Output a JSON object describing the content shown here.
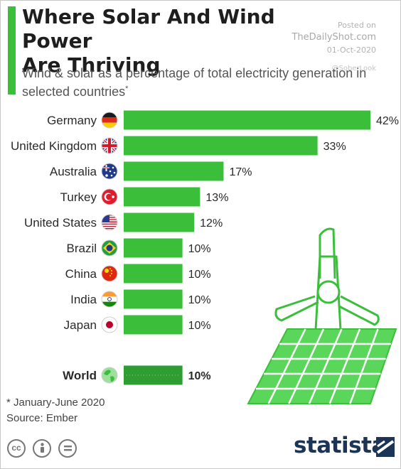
{
  "header": {
    "title_line1": "Where Solar And Wind Power",
    "title_line2": "Are Thriving",
    "subtitle": "Wind & solar as a percentage of total electricity generation in selected countries",
    "subtitle_mark": "*"
  },
  "watermark": {
    "posted": "Posted on",
    "site": "TheDailyShot.com",
    "date": "01-Oct-2020",
    "handle": "@SoberLook"
  },
  "colors": {
    "bar": "#3bbf3b",
    "world_bar": "#2e9e33",
    "accent": "#3bbf3b",
    "brand": "#1c3556"
  },
  "chart_data": {
    "type": "bar",
    "orientation": "horizontal",
    "unit": "%",
    "title": "Where Solar And Wind Power Are Thriving",
    "subtitle": "Wind & solar as a percentage of total electricity generation in selected countries",
    "categories": [
      "Germany",
      "United Kingdom",
      "Australia",
      "Turkey",
      "United States",
      "Brazil",
      "China",
      "India",
      "Japan",
      "World"
    ],
    "values": [
      42,
      33,
      17,
      13,
      12,
      10,
      10,
      10,
      10,
      10
    ],
    "value_labels": [
      "42%",
      "33%",
      "17%",
      "13%",
      "12%",
      "10%",
      "10%",
      "10%",
      "10%",
      "10%"
    ],
    "highlight": "World",
    "xlim": [
      0,
      42
    ],
    "grid": false,
    "legend": "none"
  },
  "flags": [
    "germany-flag-icon",
    "united-kingdom-flag-icon",
    "australia-flag-icon",
    "turkey-flag-icon",
    "united-states-flag-icon",
    "brazil-flag-icon",
    "china-flag-icon",
    "india-flag-icon",
    "japan-flag-icon",
    "globe-icon"
  ],
  "footer": {
    "footnote": "* January-June 2020",
    "source": "Source: Ember",
    "license_icons": [
      "cc-icon",
      "attribution-icon",
      "no-derivatives-icon"
    ],
    "brand": "statista"
  }
}
